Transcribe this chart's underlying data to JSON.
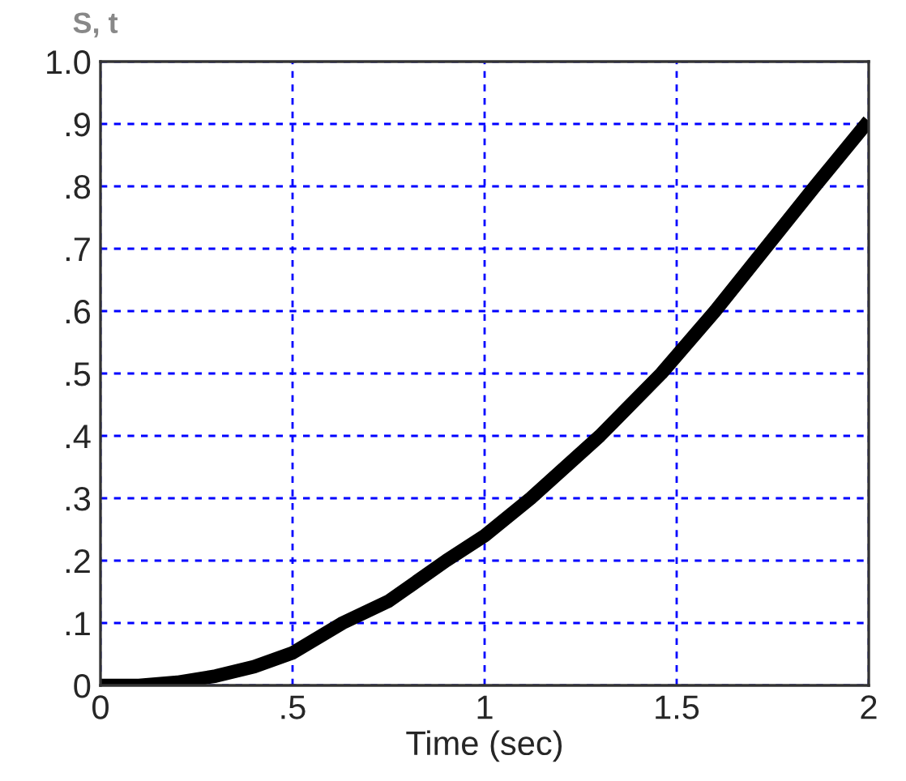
{
  "chart_data": {
    "type": "line",
    "title": "S, t",
    "xlabel": "Time (sec)",
    "x": [
      0,
      0.1,
      0.2,
      0.3,
      0.4,
      0.5,
      0.63,
      0.75,
      0.9,
      1.0,
      1.12,
      1.3,
      1.46,
      1.6,
      1.73,
      1.86,
      2.0
    ],
    "series": [
      {
        "color": "#000000",
        "values": [
          0,
          0,
          0.005,
          0.015,
          0.03,
          0.052,
          0.1,
          0.135,
          0.2,
          0.24,
          0.3,
          0.4,
          0.5,
          0.6,
          0.7,
          0.8,
          0.905
        ]
      }
    ],
    "xlim": [
      0,
      2
    ],
    "ylim": [
      0,
      1.0
    ],
    "xticks": [
      0,
      {
        "value": 0.5,
        "label": ".5"
      },
      1,
      1.5,
      2
    ],
    "yticks": [
      0,
      {
        "value": 0.1,
        "label": ".1"
      },
      {
        "value": 0.2,
        "label": ".2"
      },
      {
        "value": 0.3,
        "label": ".3"
      },
      {
        "value": 0.4,
        "label": ".4"
      },
      {
        "value": 0.5,
        "label": ".5"
      },
      {
        "value": 0.6,
        "label": ".6"
      },
      {
        "value": 0.7,
        "label": ".7"
      },
      {
        "value": 0.8,
        "label": ".8"
      },
      {
        "value": 0.9,
        "label": ".9"
      },
      {
        "value": 1.0,
        "label": "1.0"
      }
    ],
    "grid": true,
    "line_style": "solid",
    "marker": "none"
  }
}
